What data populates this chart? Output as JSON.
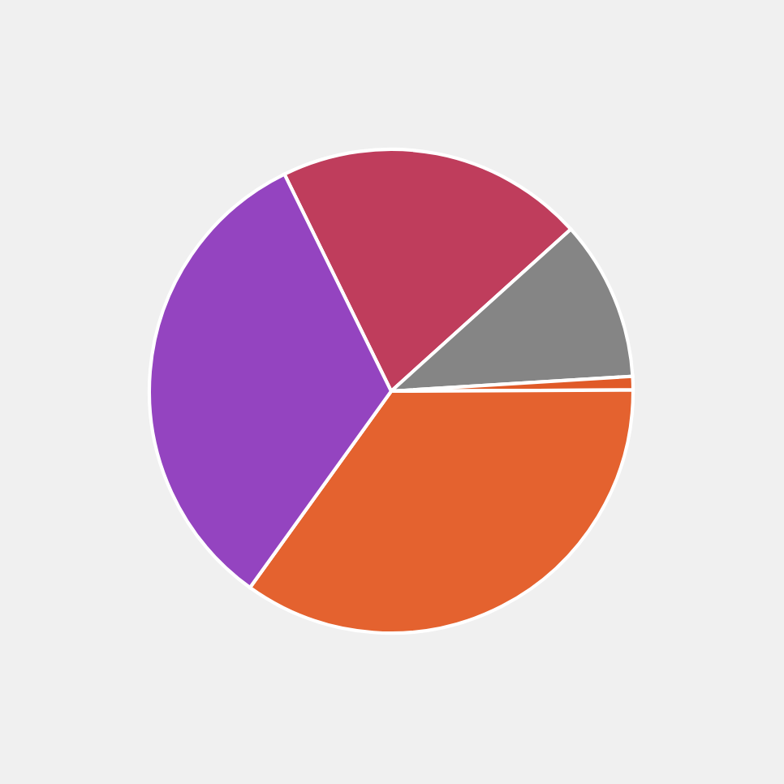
{
  "chart_data": {
    "type": "pie",
    "categories": [
      null,
      null,
      null,
      null,
      null
    ],
    "values": [
      20.6,
      10.7,
      0.9,
      35.0,
      32.8
    ],
    "colors": [
      "#bf3d5c",
      "#858585",
      "#e05a28",
      "#e4622f",
      "#9444c0"
    ]
  }
}
